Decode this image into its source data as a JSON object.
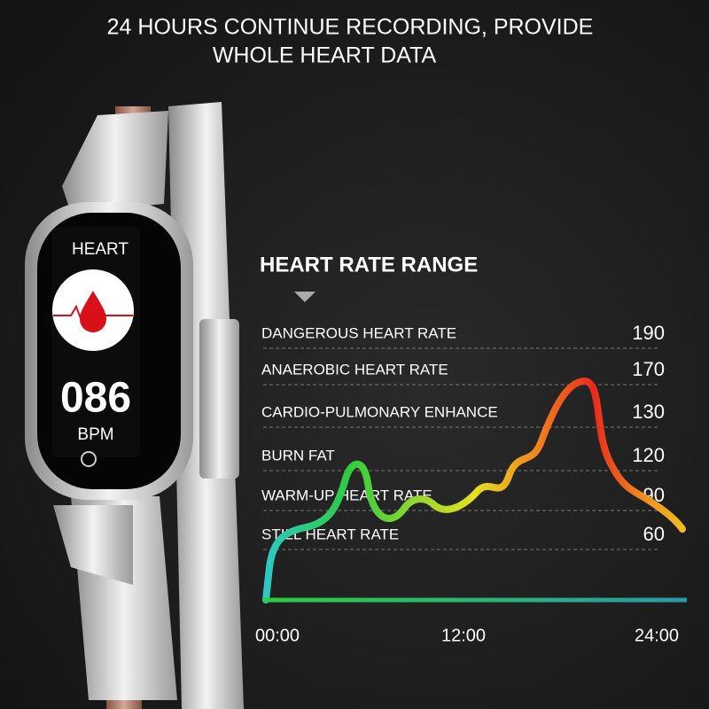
{
  "header": {
    "title": [
      "24 HOURS CONTINUE RECORDING, PROVIDE",
      "WHOLE HEART DATA"
    ]
  },
  "watch": {
    "label": "HEART",
    "reading": "086",
    "unit": "BPM"
  },
  "panel": {
    "title": "HEART RATE RANGE",
    "zones": [
      {
        "label": "DANGEROUS HEART RATE",
        "value": "190"
      },
      {
        "label": "ANAEROBIC HEART RATE",
        "value": "170"
      },
      {
        "label": "CARDIO-PULMONARY ENHANCE",
        "value": "130"
      },
      {
        "label": "BURN FAT",
        "value": "120"
      },
      {
        "label": "WARM-UP HEART RATE",
        "value": "90"
      },
      {
        "label": "STILL HEART RATE",
        "value": "60"
      }
    ],
    "time_labels": [
      "00:00",
      "12:00",
      "24:00"
    ]
  }
}
